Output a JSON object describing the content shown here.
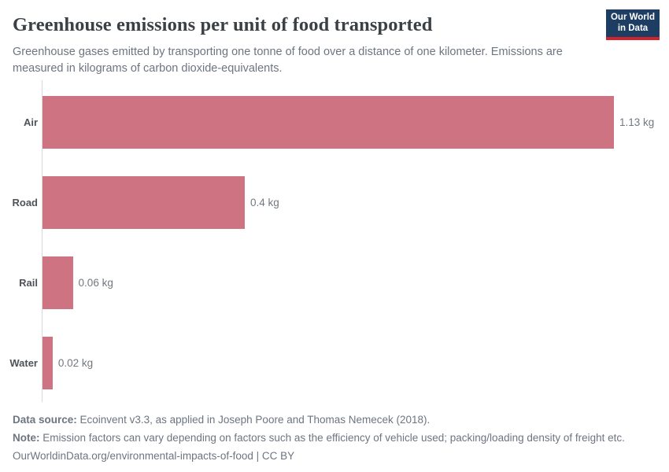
{
  "header": {
    "title": "Greenhouse emissions per unit of food transported",
    "subtitle": "Greenhouse gases emitted by transporting one tonne of food over a distance of one kilometer. Emissions are measured in kilograms of carbon dioxide-equivalents.",
    "logo": {
      "line1": "Our World",
      "line2": "in Data"
    }
  },
  "chart_data": {
    "type": "bar",
    "orientation": "horizontal",
    "title": "Greenhouse emissions per unit of food transported",
    "xlabel": "",
    "ylabel": "",
    "categories": [
      "Air",
      "Road",
      "Rail",
      "Water"
    ],
    "values": [
      1.13,
      0.4,
      0.06,
      0.02
    ],
    "value_labels": [
      "1.13 kg",
      "0.4 kg",
      "0.06 kg",
      "0.02 kg"
    ],
    "unit": "kg CO2-equivalents per tonne-kilometer",
    "xlim": [
      0,
      1.13
    ],
    "grid": false,
    "legend": "none",
    "bar_color": "#cd7382"
  },
  "footer": {
    "data_source_label": "Data source:",
    "data_source_text": " Ecoinvent v3.3, as applied in Joseph Poore and Thomas Nemecek (2018).",
    "note_label": "Note:",
    "note_text": " Emission factors can vary depending on factors such as the efficiency of vehicle used; packing/loading density of freight etc.",
    "link_text": "OurWorldinData.org/environmental-impacts-of-food | CC BY"
  },
  "colors": {
    "bar": "#cd7382",
    "title_text": "#3b4045",
    "muted_text": "#6d7581",
    "axis_line": "#d9d9d9",
    "logo_background": "#1d3d63",
    "logo_underline": "#d0232b"
  }
}
